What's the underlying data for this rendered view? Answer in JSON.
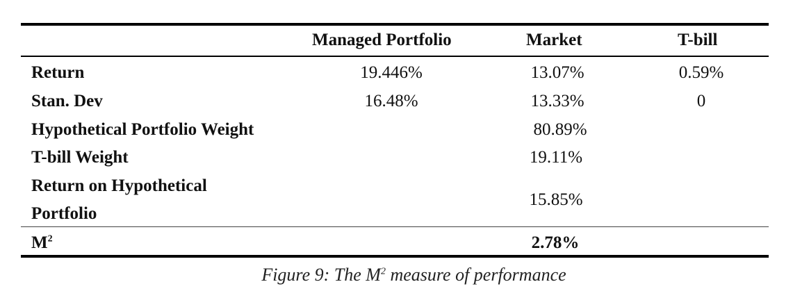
{
  "table": {
    "headers": {
      "col1": "Managed Portfolio",
      "col2": "Market",
      "col3": "T-bill"
    },
    "rows": [
      {
        "label": "Return",
        "managed": "19.446%",
        "market": "13.07%",
        "tbill": "0.59%"
      },
      {
        "label": "Stan. Dev",
        "managed": "16.48%",
        "market": "13.33%",
        "tbill": "0"
      },
      {
        "label": "Hypothetical Portfolio Weight",
        "managed": "",
        "market": "80.89%",
        "tbill": ""
      },
      {
        "label": "T-bill Weight",
        "managed": "",
        "market": "19.11%",
        "tbill": ""
      },
      {
        "label_line1": "Return on Hypothetical",
        "label_line2": "Portfolio",
        "managed": "",
        "market": "15.85%",
        "tbill": ""
      }
    ],
    "m2_row": {
      "label_base": "M",
      "label_sup": "2",
      "value": "2.78%"
    }
  },
  "caption": {
    "prefix": "Figure 9: The M",
    "sup": "2",
    "suffix": " measure of performance"
  }
}
